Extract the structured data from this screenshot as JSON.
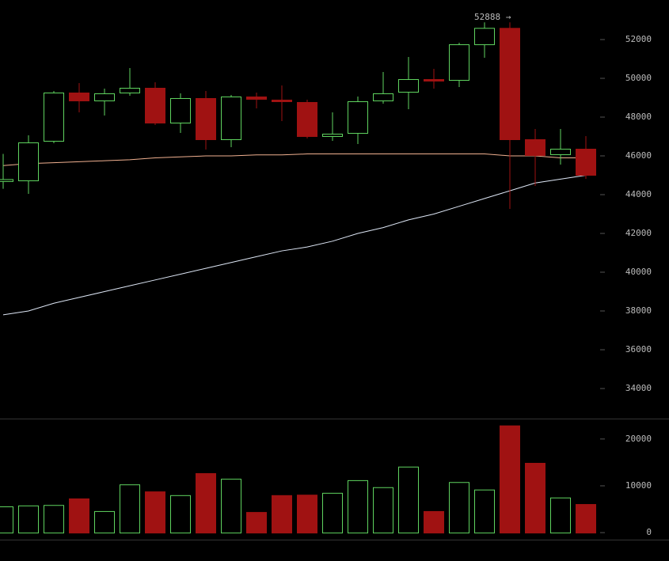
{
  "chart_data": [
    {
      "type": "candlestick",
      "annotation": "52888 →",
      "open": [
        44700,
        44735,
        46776,
        49265,
        48857,
        49265,
        49510,
        47714,
        48980,
        46857,
        49061,
        48898,
        48776,
        47020,
        47184,
        48857,
        49306,
        49959,
        49918,
        51755,
        52600,
        46857,
        46082,
        46367
      ],
      "high": [
        46100,
        47061,
        49347,
        49755,
        49469,
        50530,
        49796,
        49224,
        49347,
        49143,
        49265,
        49633,
        48898,
        48245,
        49061,
        50327,
        51102,
        50490,
        51837,
        52888,
        52888,
        47388,
        47388,
        47020
      ],
      "low": [
        44300,
        44041,
        46653,
        48245,
        48082,
        49100,
        47592,
        47184,
        46327,
        46449,
        48449,
        47796,
        46898,
        46776,
        46612,
        48694,
        48408,
        49469,
        49551,
        51061,
        43265,
        44449,
        45551,
        44816
      ],
      "close": [
        44800,
        46694,
        49265,
        48857,
        49224,
        49510,
        47714,
        48980,
        46857,
        49061,
        48939,
        48816,
        47020,
        47143,
        48816,
        49224,
        49959,
        49878,
        51755,
        52600,
        46857,
        46041,
        46367,
        45020
      ],
      "up_color": "#5fd35f",
      "down_color": "#a01212",
      "series": [
        {
          "color": "#f0b090",
          "values": [
            45500,
            45600,
            45650,
            45700,
            45750,
            45800,
            45900,
            45950,
            46000,
            46000,
            46050,
            46050,
            46100,
            46100,
            46100,
            46100,
            46100,
            46100,
            46100,
            46100,
            46000,
            46000,
            45900,
            45900
          ]
        },
        {
          "color": "#dde6f5",
          "values": [
            37800,
            38000,
            38400,
            38700,
            39000,
            39300,
            39600,
            39900,
            40200,
            40500,
            40800,
            41100,
            41300,
            41600,
            42000,
            42300,
            42700,
            43000,
            43400,
            43800,
            44200,
            44600,
            44800,
            45000
          ]
        }
      ],
      "ylim": [
        32450,
        54040
      ],
      "yticks": [
        34000,
        36000,
        38000,
        40000,
        42000,
        44000,
        46000,
        48000,
        50000,
        52000
      ]
    },
    {
      "type": "bar",
      "values": [
        5600,
        5800,
        5900,
        7300,
        4600,
        10300,
        8800,
        8000,
        12700,
        11500,
        4400,
        8000,
        8100,
        8500,
        11200,
        9700,
        14100,
        4600,
        10800,
        9200,
        22900,
        14900,
        7500,
        6100
      ],
      "ylim": [
        -1500,
        24200
      ],
      "yticks": [
        0,
        10000,
        20000
      ]
    }
  ]
}
